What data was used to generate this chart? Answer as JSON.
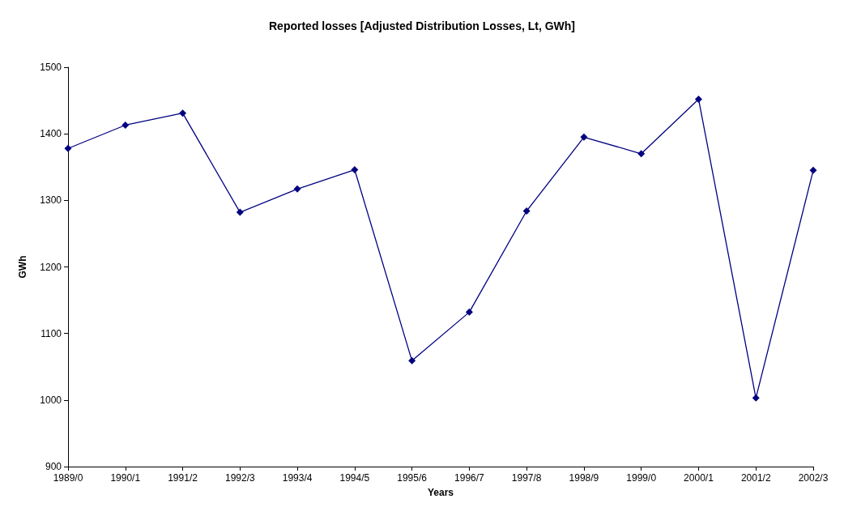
{
  "chart_data": {
    "type": "line",
    "title": "Reported losses [Adjusted Distribution Losses, Lt, GWh]",
    "xlabel": "Years",
    "ylabel": "GWh",
    "categories": [
      "1989/0",
      "1990/1",
      "1991/2",
      "1992/3",
      "1993/4",
      "1994/5",
      "1995/6",
      "1996/7",
      "1997/8",
      "1998/9",
      "1999/0",
      "2000/1",
      "2001/2",
      "2002/3"
    ],
    "series": [
      {
        "color": "#000080",
        "values": [
          1378,
          1413,
          1431,
          1282,
          1317,
          1346,
          1059,
          1132,
          1284,
          1395,
          1370,
          1452,
          1003,
          1345
        ]
      }
    ],
    "ylim": [
      900,
      1500
    ],
    "yticks": [
      900,
      1000,
      1100,
      1200,
      1300,
      1400,
      1500
    ],
    "grid": false,
    "marker": "diamond",
    "line_style": "solid"
  }
}
